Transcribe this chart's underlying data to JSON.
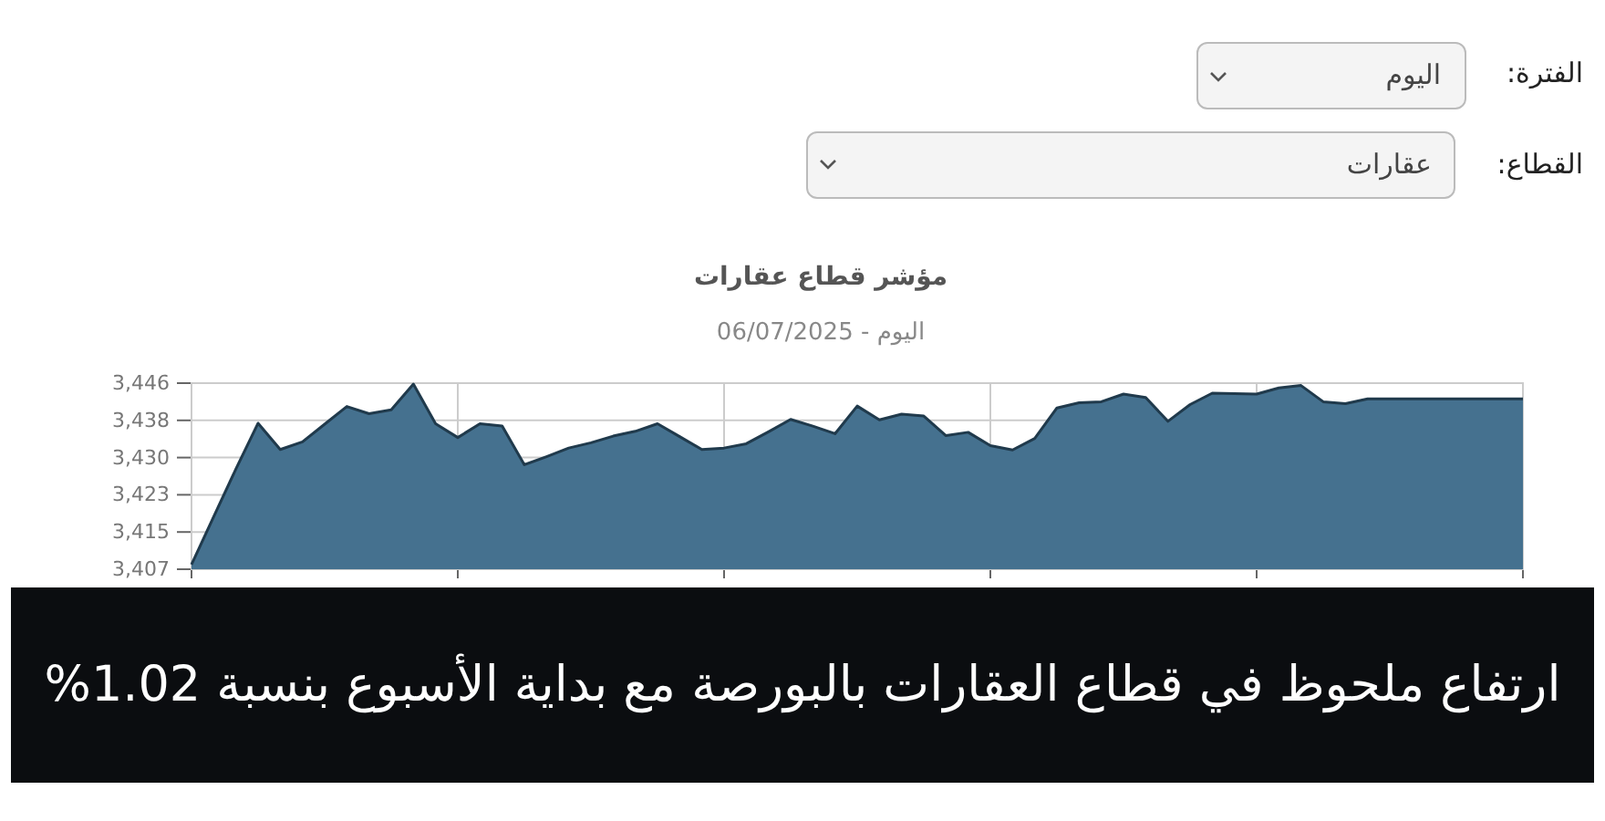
{
  "chart_data": {
    "type": "area",
    "title": "مؤشر قطاع عقارات",
    "subtitle": "اليوم - 06/07/2025",
    "annotations": [
      "الفترة:",
      "اليوم",
      "القطاع:",
      "عقارات",
      "ارتفاع ملحوظ في قطاع العقارات بالبورصة مع بداية الأسبوع بنسبة 1.02%"
    ],
    "categories": [
      null,
      null,
      null,
      null,
      null,
      null,
      null,
      null,
      null,
      null,
      null,
      null,
      null,
      null,
      null,
      null,
      null,
      null,
      null,
      null,
      null,
      null,
      null,
      null,
      null,
      null,
      null,
      null,
      null,
      null,
      null,
      null,
      null,
      null,
      null,
      null,
      null,
      null,
      null,
      null,
      null,
      null,
      null,
      null,
      null,
      null,
      null,
      null,
      null,
      null,
      null,
      null,
      null,
      null,
      null,
      null,
      null,
      null,
      null,
      null,
      null
    ],
    "series": [
      {
        "color": "#45718f",
        "values": [
          3408,
          3418,
          3428,
          3437.6,
          3432.1,
          3433.7,
          3437.4,
          3441.1,
          3439.6,
          3440.4,
          3445.8,
          3437.5,
          3434.6,
          3437.5,
          3437.0,
          3428.9,
          3430.6,
          3432.4,
          3433.5,
          3434.9,
          3435.9,
          3437.5,
          3434.8,
          3432.1,
          3432.4,
          3433.3,
          3435.8,
          3438.4,
          3437.0,
          3435.4,
          3441.2,
          3438.3,
          3439.5,
          3439.1,
          3435.0,
          3435.7,
          3432.9,
          3432.0,
          3434.4,
          3440.8,
          3441.9,
          3442.1,
          3443.7,
          3443.0,
          3438.0,
          3441.5,
          3443.9,
          3443.8,
          3443.7,
          3445.0,
          3445.5,
          3442.1,
          3441.7,
          3442.7,
          3442.7,
          3442.7,
          3442.7,
          3442.7,
          3442.7,
          3442.7,
          3442.7
        ]
      }
    ],
    "ylim": [
      3407,
      3446
    ],
    "yticks": [
      {
        "value": 3407,
        "label": "3,407"
      },
      {
        "value": 3414.8,
        "label": "3,415"
      },
      {
        "value": 3422.6,
        "label": "3,423"
      },
      {
        "value": 3430.4,
        "label": "3,430"
      },
      {
        "value": 3438.2,
        "label": "3,438"
      },
      {
        "value": 3446,
        "label": "3,446"
      }
    ],
    "grid": true
  }
}
